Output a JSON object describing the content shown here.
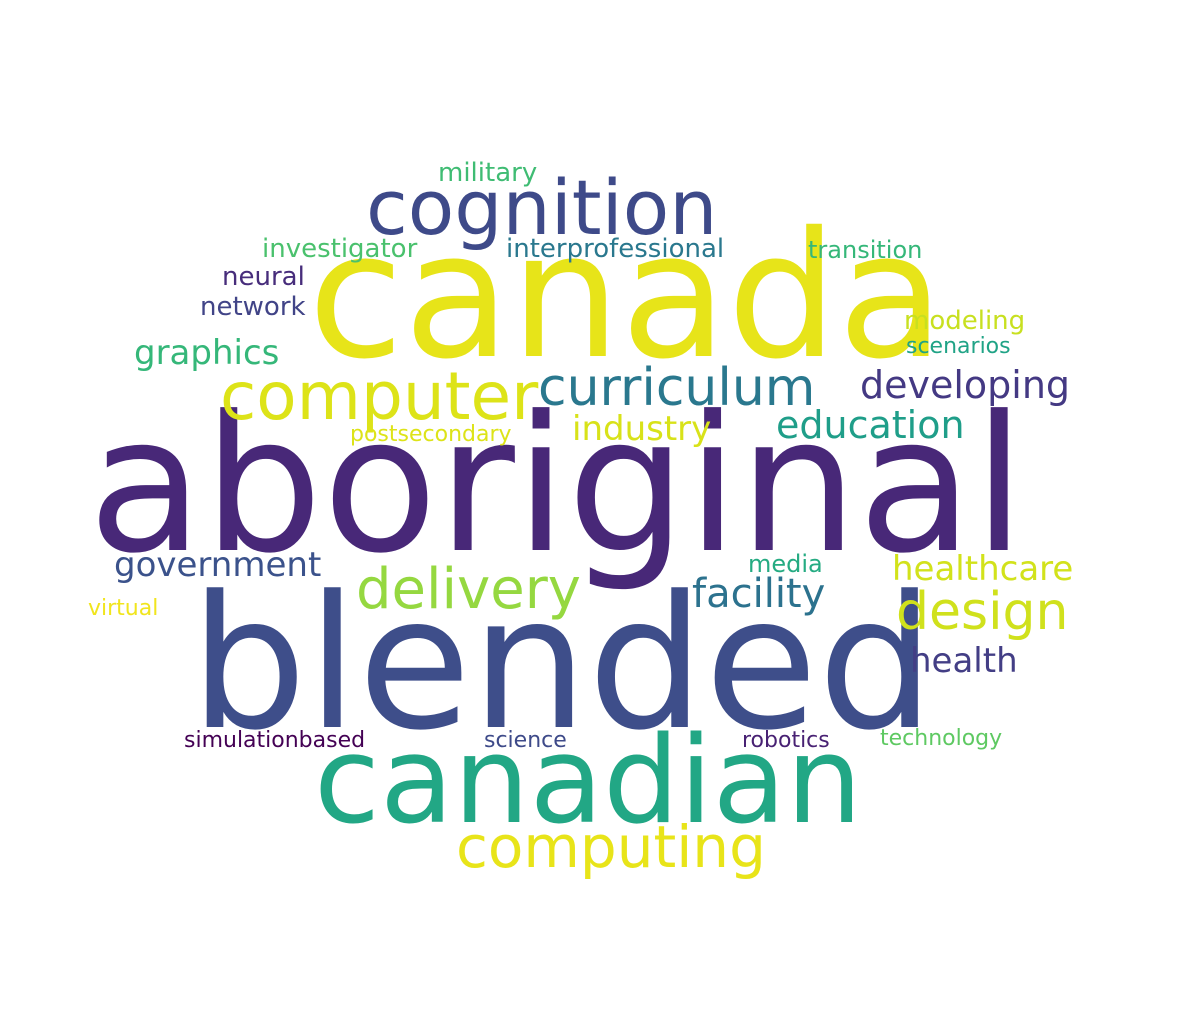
{
  "words": {
    "aboriginal": {
      "text": "aboriginal",
      "color": "#482878"
    },
    "blended": {
      "text": "blended",
      "color": "#3e4e8a"
    },
    "canada": {
      "text": "canada",
      "color": "#e7e419"
    },
    "canadian": {
      "text": "canadian",
      "color": "#22a785"
    },
    "cognition": {
      "text": "cognition",
      "color": "#3e4a89"
    },
    "computer": {
      "text": "computer",
      "color": "#dde318"
    },
    "curriculum": {
      "text": "curriculum",
      "color": "#2a788e"
    },
    "computing": {
      "text": "computing",
      "color": "#e8e419"
    },
    "delivery": {
      "text": "delivery",
      "color": "#95d840"
    },
    "design": {
      "text": "design",
      "color": "#d0e11c"
    },
    "developing": {
      "text": "developing",
      "color": "#443983"
    },
    "education": {
      "text": "education",
      "color": "#1f9e89"
    },
    "industry": {
      "text": "industry",
      "color": "#d8e219"
    },
    "facility": {
      "text": "facility",
      "color": "#2c728e"
    },
    "government": {
      "text": "government",
      "color": "#3b528b"
    },
    "healthcare": {
      "text": "healthcare",
      "color": "#d2e21b"
    },
    "health": {
      "text": "health",
      "color": "#433e85"
    },
    "graphics": {
      "text": "graphics",
      "color": "#35b779"
    },
    "investigator": {
      "text": "investigator",
      "color": "#4ac16d"
    },
    "interprofessional": {
      "text": "interprofessional",
      "color": "#2a788e"
    },
    "transition": {
      "text": "transition",
      "color": "#35b779"
    },
    "military": {
      "text": "military",
      "color": "#3fbc73"
    },
    "neural": {
      "text": "neural",
      "color": "#472d7b"
    },
    "network": {
      "text": "network",
      "color": "#414487"
    },
    "modeling": {
      "text": "modeling",
      "color": "#c8e020"
    },
    "scenarios": {
      "text": "scenarios",
      "color": "#20a386"
    },
    "postsecondary": {
      "text": "postsecondary",
      "color": "#dde318"
    },
    "media": {
      "text": "media",
      "color": "#25ab82"
    },
    "virtual": {
      "text": "virtual",
      "color": "#f1e51d"
    },
    "simulationbased": {
      "text": "simulationbased",
      "color": "#440154"
    },
    "science": {
      "text": "science",
      "color": "#3e4a89"
    },
    "robotics": {
      "text": "robotics",
      "color": "#482173"
    },
    "technology": {
      "text": "technology",
      "color": "#5ec962"
    }
  }
}
